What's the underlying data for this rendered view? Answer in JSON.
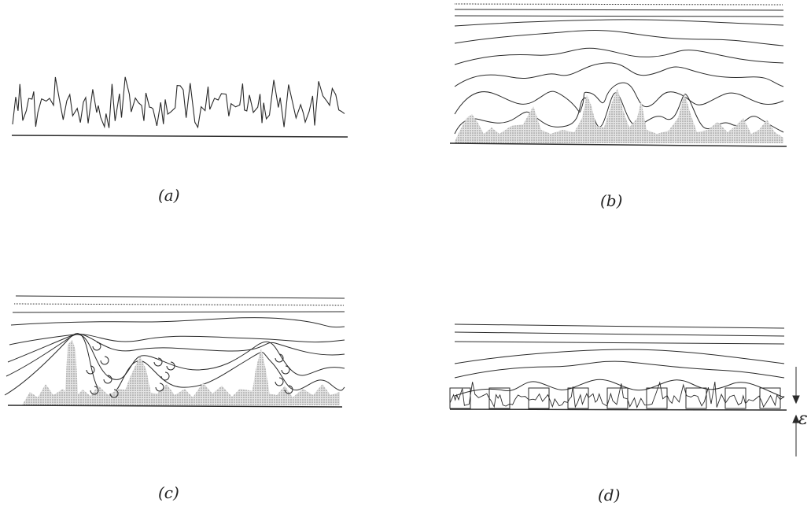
{
  "panels": [
    {
      "id": "a",
      "label": "(a)"
    },
    {
      "id": "b",
      "label": "(b)"
    },
    {
      "id": "c",
      "label": "(c)"
    },
    {
      "id": "d",
      "label": "(d)"
    }
  ],
  "roughness_symbol": "ε",
  "colors": {
    "ink": "#2a2a2a",
    "shade": "#c8c8c8"
  }
}
